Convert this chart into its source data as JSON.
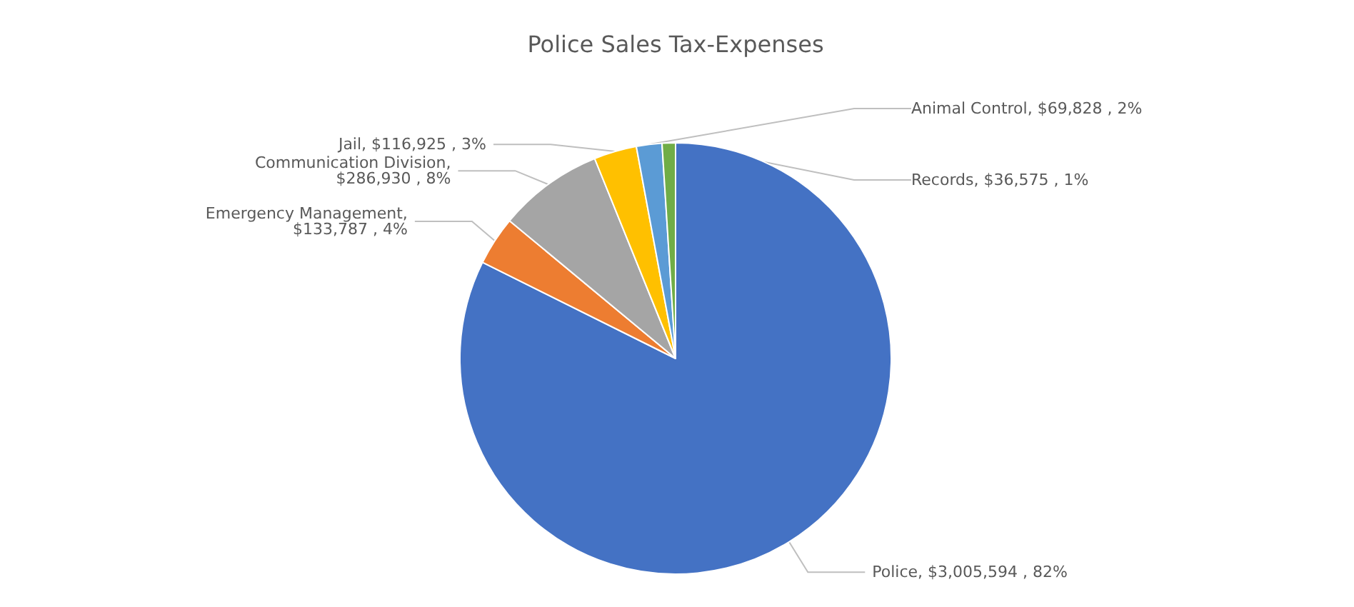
{
  "chart_data": {
    "type": "pie",
    "title": "Police Sales Tax-Expenses",
    "categories": [
      "Police",
      "Emergency Management",
      "Communication Division",
      "Jail",
      "Animal Control",
      "Records"
    ],
    "values": [
      3005594,
      133787,
      286930,
      116925,
      69828,
      36575
    ],
    "value_labels": [
      ", $3,005,594 , 82%",
      ", $133,787 , 4%",
      ", $286,930 , 8%",
      ", $116,925 , 3%",
      ", $69,828 , 2%",
      ", $36,575 , 1%"
    ],
    "colors": [
      "#4472c4",
      "#ed7d31",
      "#a5a5a5",
      "#ffc000",
      "#5b9bd5",
      "#70ad47"
    ],
    "legend": false
  }
}
